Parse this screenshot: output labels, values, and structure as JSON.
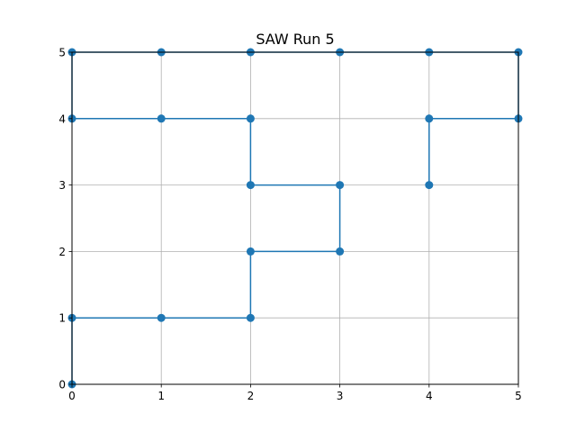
{
  "chart_data": {
    "type": "line",
    "title": "SAW Run 5",
    "xlabel": "",
    "ylabel": "",
    "xlim": [
      0,
      5
    ],
    "ylim": [
      0,
      5
    ],
    "xticks": [
      "0",
      "1",
      "2",
      "3",
      "4",
      "5"
    ],
    "yticks": [
      "0",
      "1",
      "2",
      "3",
      "4",
      "5"
    ],
    "grid": true,
    "series": [
      {
        "color": "#1f77b4",
        "x": [
          0,
          0,
          1,
          2,
          2,
          3,
          3,
          2,
          2,
          1,
          0,
          0,
          1,
          2,
          3,
          4,
          5,
          5,
          4,
          4
        ],
        "y": [
          0,
          1,
          1,
          1,
          2,
          2,
          3,
          3,
          4,
          4,
          4,
          5,
          5,
          5,
          5,
          5,
          5,
          4,
          4,
          3
        ]
      }
    ]
  }
}
